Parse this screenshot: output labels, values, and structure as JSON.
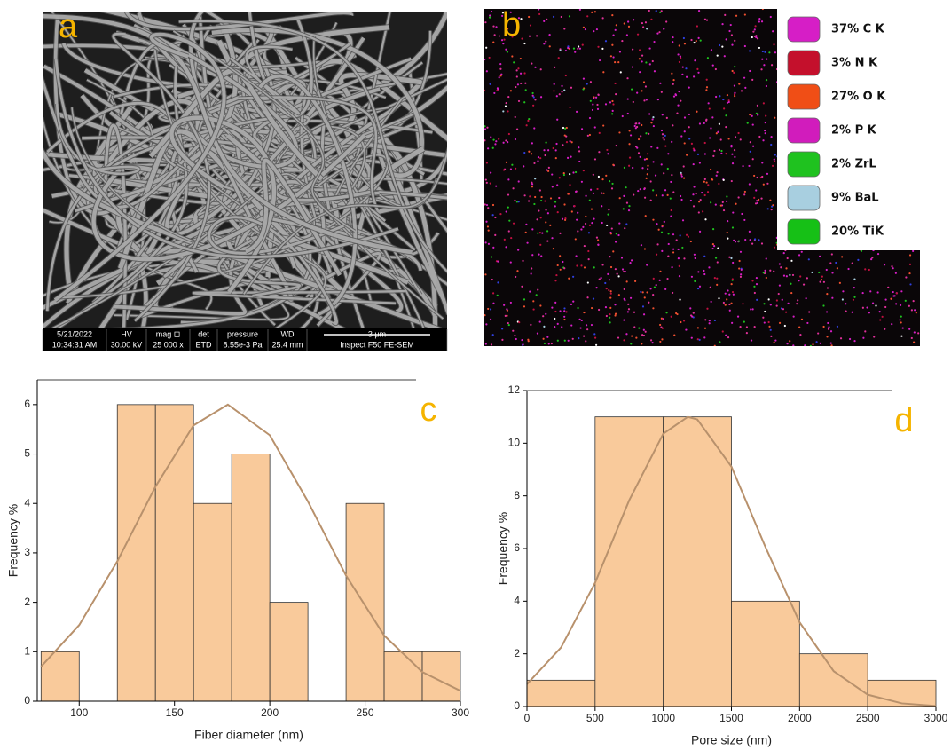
{
  "panels": [
    {
      "label": "a",
      "info_bar": [
        [
          "5/21/2022",
          "HV",
          "mag ⊡",
          "det",
          "pressure",
          "WD",
          "3 μm"
        ],
        [
          "10:34:31 AM",
          "30.00 kV",
          "25 000 x",
          "ETD",
          "8.55e-3 Pa",
          "25.4 mm",
          "Inspect F50 FE-SEM"
        ]
      ]
    },
    {
      "label": "b",
      "legend": [
        {
          "text": "37%  C K",
          "color": "#d61ec6"
        },
        {
          "text": "3%  N K",
          "color": "#c4102c"
        },
        {
          "text": "27%  O K",
          "color": "#f04e16"
        },
        {
          "text": "2%  P K",
          "color": "#d11cbc"
        },
        {
          "text": "2%  ZrL",
          "color": "#1fc21f"
        },
        {
          "text": "9%  BaL",
          "color": "#a8cfe0"
        },
        {
          "text": "20% TiK",
          "color": "#16c016"
        }
      ]
    }
  ],
  "chart_data": [
    {
      "type": "histogram",
      "label": "c",
      "x_label": "Fiber diameter (nm)",
      "y_label": "Frequency %",
      "bins": [
        80,
        100,
        120,
        140,
        160,
        180,
        200,
        220,
        240,
        260,
        280,
        300
      ],
      "values": [
        1,
        0,
        6,
        6,
        4,
        5,
        2,
        0,
        4,
        1,
        1
      ],
      "color": "#f9ca9b",
      "fit": {
        "x": [
          80,
          100,
          120,
          140,
          160,
          178,
          200,
          220,
          240,
          260,
          280,
          300
        ],
        "values": [
          0.7,
          1.54,
          2.83,
          4.34,
          5.58,
          6,
          5.38,
          4.04,
          2.54,
          1.33,
          0.59,
          0.21
        ],
        "color": "#b8916c"
      },
      "xlim": [
        78,
        300
      ],
      "ylim": [
        0,
        6.5
      ],
      "xticks": [
        100,
        150,
        200,
        250,
        300
      ],
      "yticks": [
        0,
        1,
        2,
        3,
        4,
        5,
        6
      ]
    },
    {
      "type": "histogram",
      "label": "d",
      "x_label": "Pore size (nm)",
      "y_label": "Frequency %",
      "bins": [
        0,
        500,
        1000,
        1500,
        2000,
        2500,
        3000
      ],
      "values": [
        1,
        11,
        11,
        4,
        2,
        1
      ],
      "color": "#f9ca9b",
      "fit": {
        "x": [
          0,
          250,
          500,
          750,
          1000,
          1180,
          1250,
          1500,
          1750,
          2000,
          2250,
          2500,
          2750,
          3000
        ],
        "values": [
          0.85,
          2.24,
          4.7,
          7.83,
          10.36,
          11,
          10.9,
          9.11,
          6.05,
          3.2,
          1.34,
          0.45,
          0.12,
          0.02
        ],
        "color": "#b8916c"
      },
      "xlim": [
        0,
        3000
      ],
      "ylim": [
        0,
        12
      ],
      "xticks": [
        0,
        500,
        1000,
        1500,
        2000,
        2500,
        3000
      ],
      "yticks": [
        0,
        2,
        4,
        6,
        8,
        10,
        12
      ]
    }
  ]
}
